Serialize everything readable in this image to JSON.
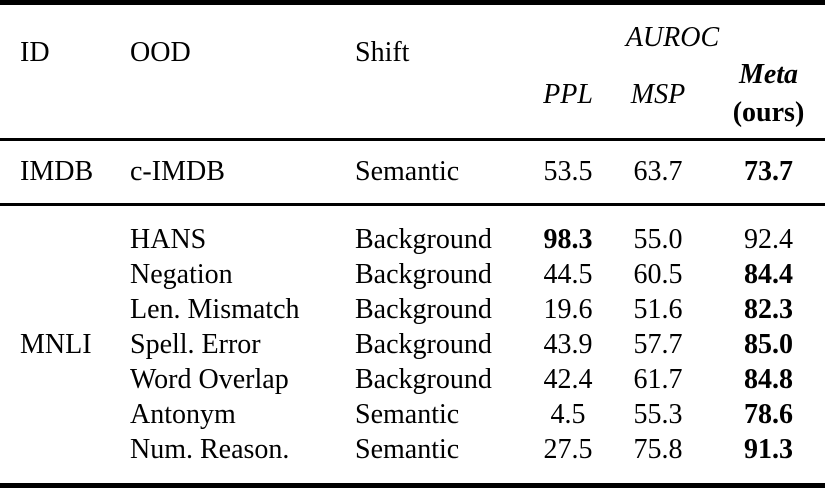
{
  "table": {
    "headers": {
      "id": "ID",
      "ood": "OOD",
      "shift": "Shift",
      "metric_group": "AUROC",
      "ppl": "PPL",
      "msp": "MSP",
      "meta_line1": "Meta",
      "meta_line2": "(ours)"
    },
    "groups": [
      {
        "id": "IMDB",
        "rows": [
          {
            "ood": "c-IMDB",
            "shift": "Semantic",
            "ppl": "53.5",
            "msp": "63.7",
            "meta": "73.7",
            "bold": "meta"
          }
        ]
      },
      {
        "id": "MNLI",
        "rows": [
          {
            "ood": "HANS",
            "shift": "Background",
            "ppl": "98.3",
            "msp": "55.0",
            "meta": "92.4",
            "bold": "ppl"
          },
          {
            "ood": "Negation",
            "shift": "Background",
            "ppl": "44.5",
            "msp": "60.5",
            "meta": "84.4",
            "bold": "meta"
          },
          {
            "ood": "Len. Mismatch",
            "shift": "Background",
            "ppl": "19.6",
            "msp": "51.6",
            "meta": "82.3",
            "bold": "meta"
          },
          {
            "ood": "Spell. Error",
            "shift": "Background",
            "ppl": "43.9",
            "msp": "57.7",
            "meta": "85.0",
            "bold": "meta"
          },
          {
            "ood": "Word Overlap",
            "shift": "Background",
            "ppl": "42.4",
            "msp": "61.7",
            "meta": "84.8",
            "bold": "meta"
          },
          {
            "ood": "Antonym",
            "shift": "Semantic",
            "ppl": "4.5",
            "msp": "55.3",
            "meta": "78.6",
            "bold": "meta"
          },
          {
            "ood": "Num. Reason.",
            "shift": "Semantic",
            "ppl": "27.5",
            "msp": "75.8",
            "meta": "91.3",
            "bold": "meta"
          }
        ]
      }
    ]
  }
}
